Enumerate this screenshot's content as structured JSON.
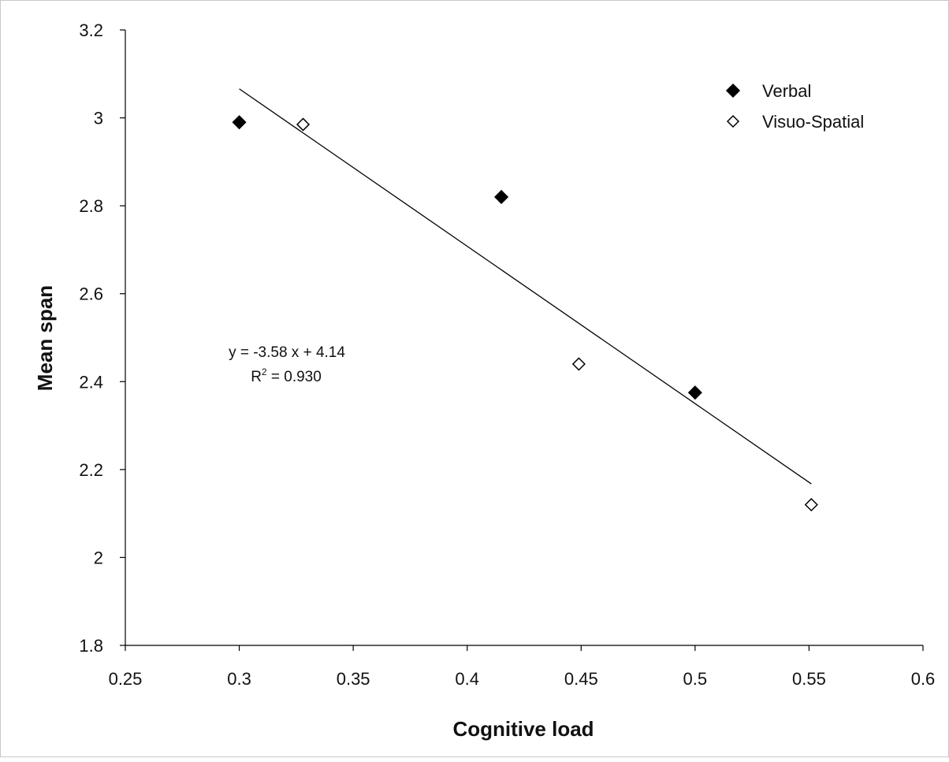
{
  "chart_data": {
    "type": "scatter",
    "title": "",
    "xlabel": "Cognitive load",
    "ylabel": "Mean span",
    "xlim": [
      0.25,
      0.6
    ],
    "ylim": [
      1.8,
      3.2
    ],
    "x_ticks": [
      "0.25",
      "0.3",
      "0.35",
      "0.4",
      "0.45",
      "0.5",
      "0.55",
      "0.6"
    ],
    "y_ticks": [
      "1.8",
      "2",
      "2.2",
      "2.4",
      "2.6",
      "2.8",
      "3",
      "3.2"
    ],
    "x_tick_values": [
      0.25,
      0.3,
      0.35,
      0.4,
      0.45,
      0.5,
      0.55,
      0.6
    ],
    "y_tick_values": [
      1.8,
      2.0,
      2.2,
      2.4,
      2.6,
      2.8,
      3.0,
      3.2
    ],
    "grid": false,
    "legend_position": "top-right",
    "series": [
      {
        "name": "Verbal",
        "marker": "filled-diamond",
        "color": "#000000",
        "points": [
          {
            "x": 0.3,
            "y": 2.99
          },
          {
            "x": 0.415,
            "y": 2.82
          },
          {
            "x": 0.5,
            "y": 2.375
          }
        ]
      },
      {
        "name": "Visuo-Spatial",
        "marker": "open-diamond",
        "color": "#000000",
        "points": [
          {
            "x": 0.328,
            "y": 2.985
          },
          {
            "x": 0.449,
            "y": 2.44
          },
          {
            "x": 0.551,
            "y": 2.12
          }
        ]
      }
    ],
    "trendline": {
      "slope": -3.58,
      "intercept": 4.14,
      "x_range": [
        0.3,
        0.551
      ]
    },
    "annotation": {
      "equation": "y = -3.58 x + 4.14",
      "r_squared_prefix": "R",
      "r_squared_sup": "2",
      "r_squared_value": " = 0.930"
    }
  }
}
